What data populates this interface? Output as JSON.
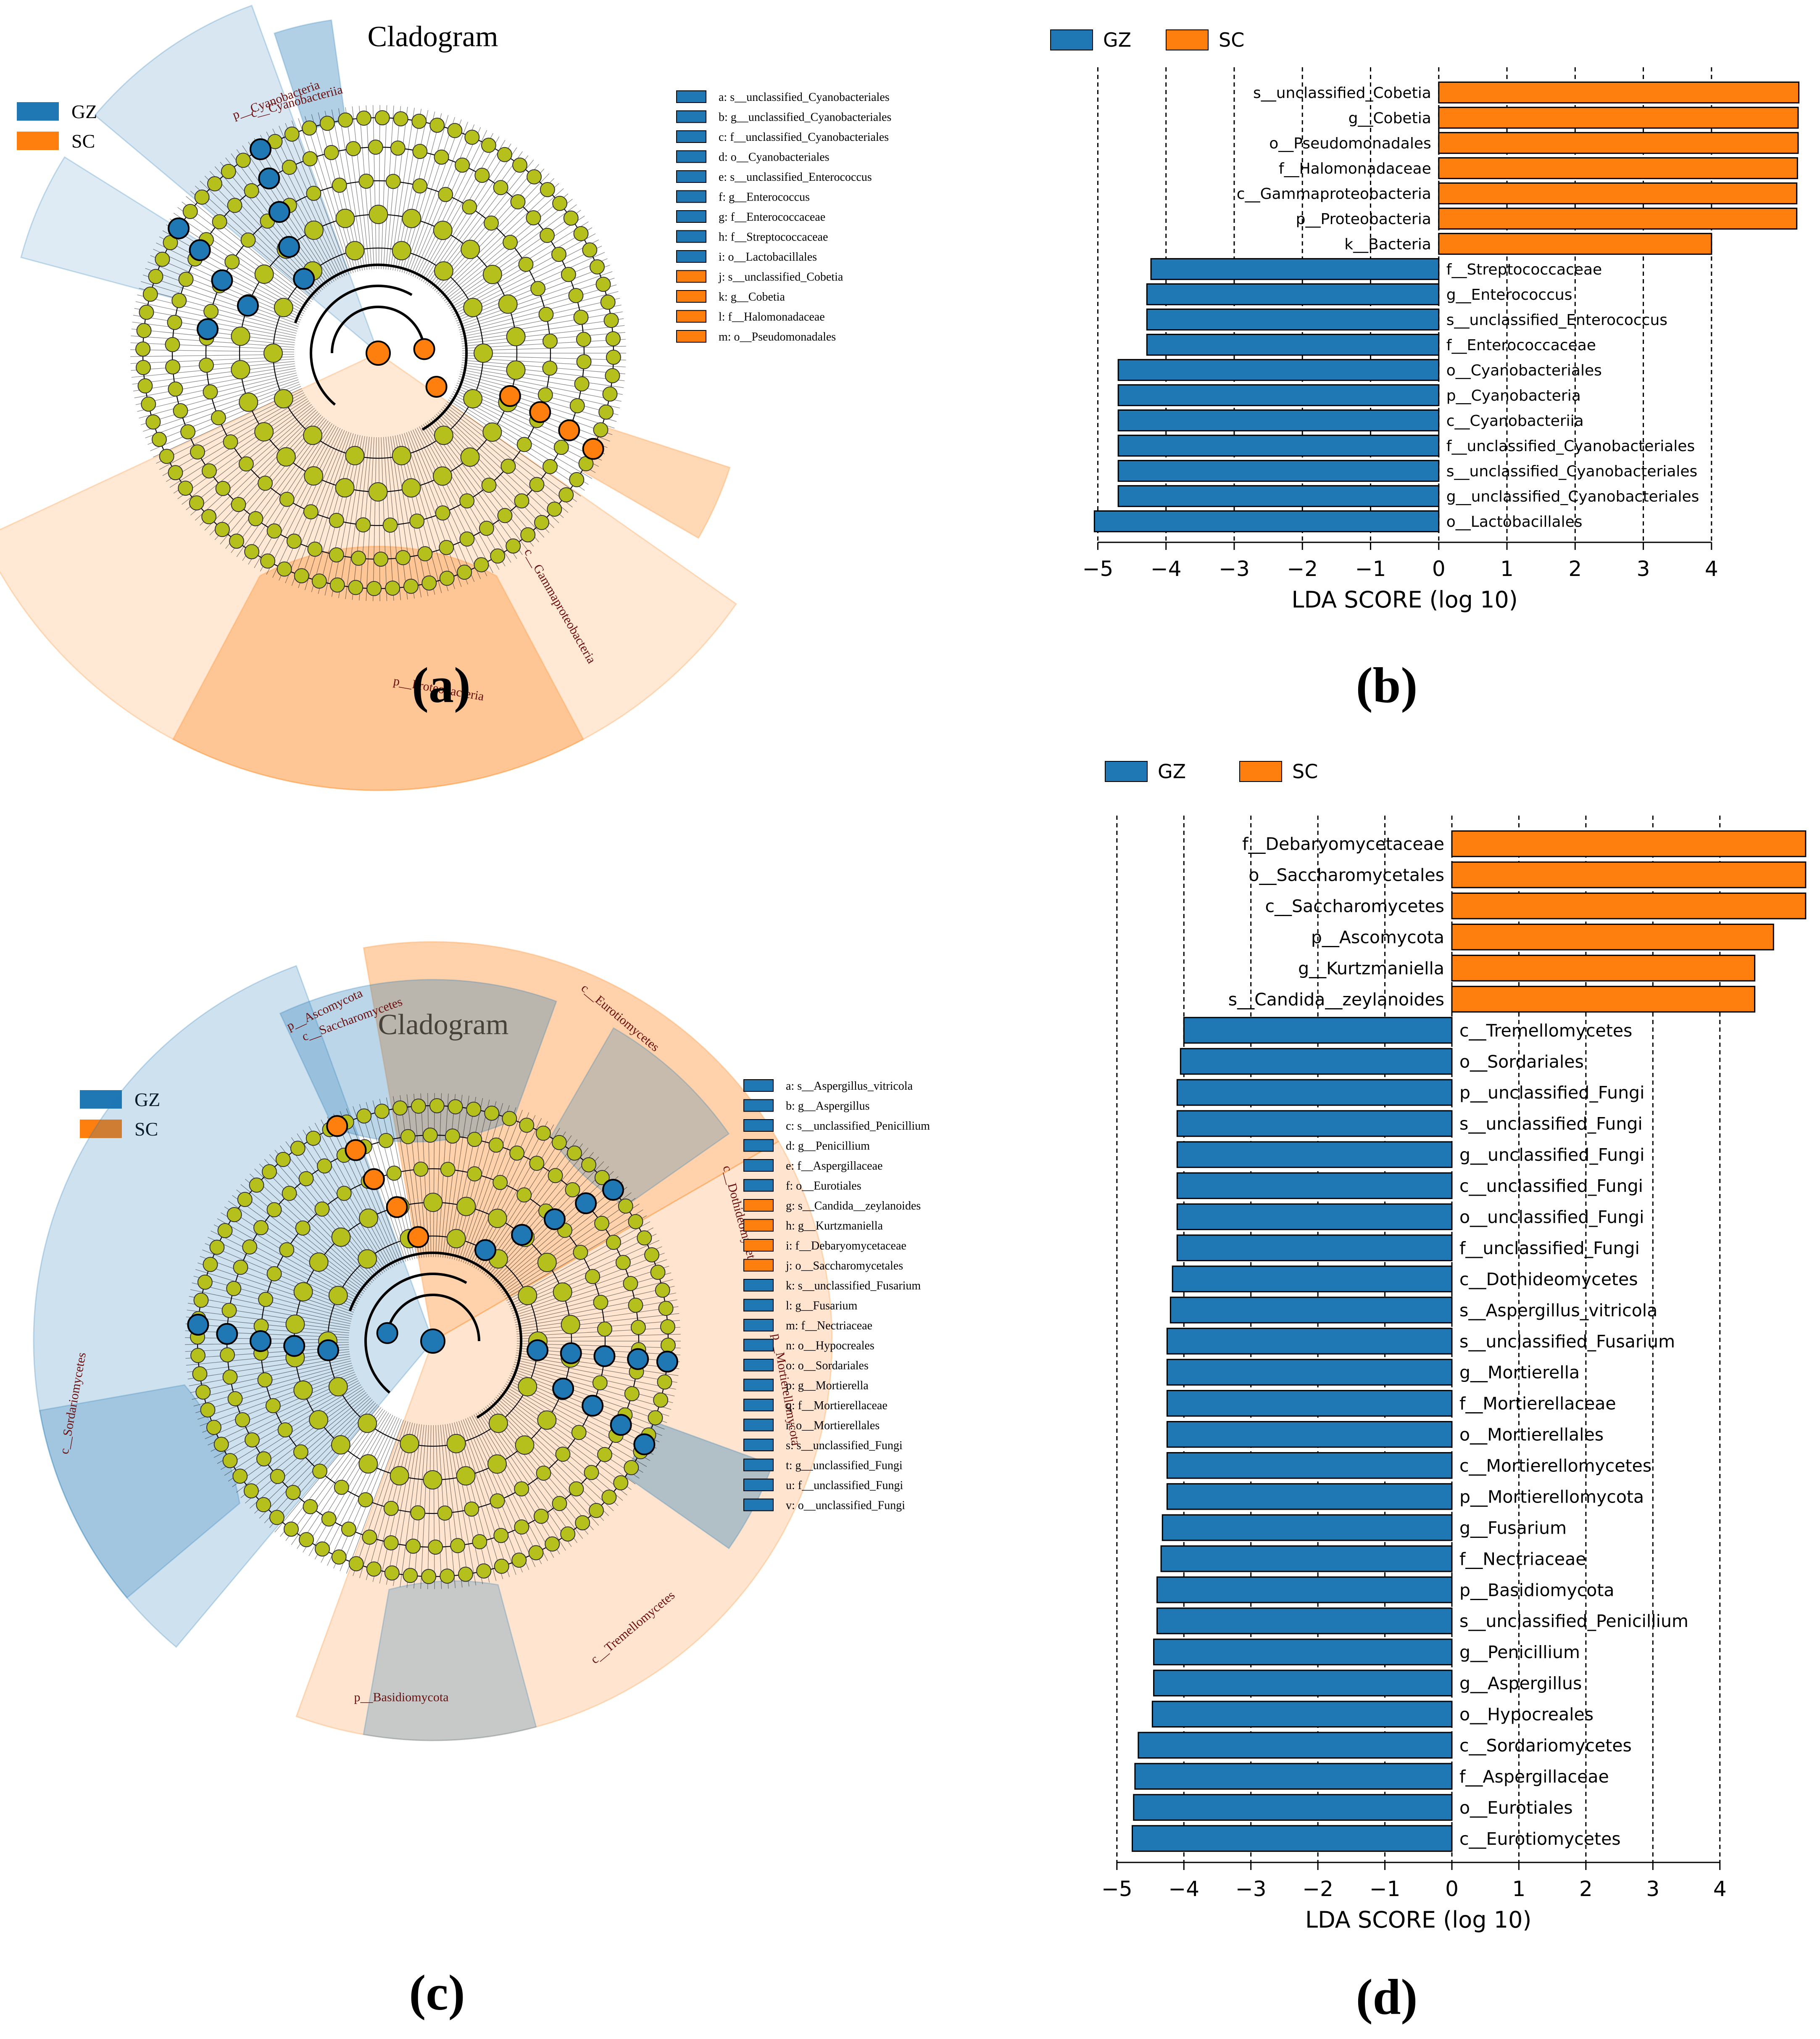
{
  "colors": {
    "GZ": "#1f77b4",
    "SC": "#ff7f0e",
    "node": "#b5c01c"
  },
  "panels": [
    {
      "id": "a",
      "letter": "(a)",
      "type": "cladogram",
      "title": "Cladogram",
      "legend_groups": [
        "GZ",
        "SC"
      ],
      "keys": [
        {
          "text": "a: s__unclassified_Cyanobacteriales",
          "group": "GZ"
        },
        {
          "text": "b: g__unclassified_Cyanobacteriales",
          "group": "GZ"
        },
        {
          "text": "c: f__unclassified_Cyanobacteriales",
          "group": "GZ"
        },
        {
          "text": "d: o__Cyanobacteriales",
          "group": "GZ"
        },
        {
          "text": "e: s__unclassified_Enterococcus",
          "group": "GZ"
        },
        {
          "text": "f: g__Enterococcus",
          "group": "GZ"
        },
        {
          "text": "g: f__Enterococcaceae",
          "group": "GZ"
        },
        {
          "text": "h: f__Streptococcaceae",
          "group": "GZ"
        },
        {
          "text": "i: o__Lactobacillales",
          "group": "GZ"
        },
        {
          "text": "j: s__unclassified_Cobetia",
          "group": "SC"
        },
        {
          "text": "k: g__Cobetia",
          "group": "SC"
        },
        {
          "text": "l: f__Halomonadaceae",
          "group": "SC"
        },
        {
          "text": "m: o__Pseudomonadales",
          "group": "SC"
        }
      ],
      "clade_labels": [
        {
          "text": "p__Cyanobacteria",
          "group": "GZ"
        },
        {
          "text": "c__Cyanobacteriia",
          "group": "GZ"
        },
        {
          "text": "c__Gammaproteobacteria",
          "group": "SC"
        },
        {
          "text": "p__Proteobacteria",
          "group": "SC"
        }
      ]
    },
    {
      "id": "c",
      "letter": "(c)",
      "type": "cladogram",
      "title": "Cladogram",
      "legend_groups": [
        "GZ",
        "SC"
      ],
      "keys": [
        {
          "text": "a: s__Aspergillus_vitricola",
          "group": "GZ"
        },
        {
          "text": "b: g__Aspergillus",
          "group": "GZ"
        },
        {
          "text": "c: s__unclassified_Penicillium",
          "group": "GZ"
        },
        {
          "text": "d: g__Penicillium",
          "group": "GZ"
        },
        {
          "text": "e: f__Aspergillaceae",
          "group": "GZ"
        },
        {
          "text": "f: o__Eurotiales",
          "group": "GZ"
        },
        {
          "text": "g: s__Candida__zeylanoides",
          "group": "SC"
        },
        {
          "text": "h: g__Kurtzmaniella",
          "group": "SC"
        },
        {
          "text": "i: f__Debaryomycetaceae",
          "group": "SC"
        },
        {
          "text": "j: o__Saccharomycetales",
          "group": "SC"
        },
        {
          "text": "k: s__unclassified_Fusarium",
          "group": "GZ"
        },
        {
          "text": "l: g__Fusarium",
          "group": "GZ"
        },
        {
          "text": "m: f__Nectriaceae",
          "group": "GZ"
        },
        {
          "text": "n: o__Hypocreales",
          "group": "GZ"
        },
        {
          "text": "o: o__Sordariales",
          "group": "GZ"
        },
        {
          "text": "p: g__Mortierella",
          "group": "GZ"
        },
        {
          "text": "q: f__Mortierellaceae",
          "group": "GZ"
        },
        {
          "text": "r: o__Mortierellales",
          "group": "GZ"
        },
        {
          "text": "s: s__unclassified_Fungi",
          "group": "GZ"
        },
        {
          "text": "t: g__unclassified_Fungi",
          "group": "GZ"
        },
        {
          "text": "u: f__unclassified_Fungi",
          "group": "GZ"
        },
        {
          "text": "v: o__unclassified_Fungi",
          "group": "GZ"
        }
      ],
      "clade_labels": [
        {
          "text": "p__Ascomycota",
          "group": "SC"
        },
        {
          "text": "c__Saccharomycetes",
          "group": "SC"
        },
        {
          "text": "c__Eurotiomycetes",
          "group": "GZ"
        },
        {
          "text": "c__Dothideomycetes",
          "group": "GZ"
        },
        {
          "text": "c__Sordariomycetes",
          "group": "GZ"
        },
        {
          "text": "c__Tremellomycetes",
          "group": "GZ"
        },
        {
          "text": "p__Basidiomycota",
          "group": "GZ"
        },
        {
          "text": "p__Mortierellomycota",
          "group": "GZ"
        }
      ]
    }
  ],
  "chart_data": [
    {
      "id": "b",
      "letter": "(b)",
      "type": "bar",
      "orientation": "horizontal",
      "xlabel": "LDA SCORE (log 10)",
      "xlim": [
        -5.2,
        5.4
      ],
      "xticks": [
        -5,
        -4,
        -3,
        -2,
        -1,
        0,
        1,
        2,
        3,
        4
      ],
      "xtick_labels": [
        "−5",
        "−4",
        "−3",
        "−2",
        "−1",
        "0",
        "1",
        "2",
        "3",
        "4"
      ],
      "grid": "vertical dashed",
      "legend_position": "top",
      "legend": [
        "GZ",
        "SC"
      ],
      "categories": [
        "s__unclassified_Cobetia",
        "g__Cobetia",
        "o__Pseudomonadales",
        "f__Halomonadaceae",
        "c__Gammaproteobacteria",
        "p__Proteobacteria",
        "k__Bacteria",
        "f__Streptococcaceae",
        "g__Enterococcus",
        "s__unclassified_Enterococcus",
        "f__Enterococcaceae",
        "o__Cyanobacteriales",
        "p__Cyanobacteria",
        "c__Cyanobacteriia",
        "f__unclassified_Cyanobacteriales",
        "s__unclassified_Cyanobacteriales",
        "g__unclassified_Cyanobacteriales",
        "o__Lactobacillales"
      ],
      "values": [
        5.28,
        5.27,
        5.27,
        5.26,
        5.25,
        5.25,
        4.0,
        -4.22,
        -4.28,
        -4.28,
        -4.28,
        -4.7,
        -4.7,
        -4.7,
        -4.7,
        -4.7,
        -4.7,
        -5.05
      ],
      "groups": [
        "SC",
        "SC",
        "SC",
        "SC",
        "SC",
        "SC",
        "SC",
        "GZ",
        "GZ",
        "GZ",
        "GZ",
        "GZ",
        "GZ",
        "GZ",
        "GZ",
        "GZ",
        "GZ",
        "GZ"
      ]
    },
    {
      "id": "d",
      "letter": "(d)",
      "type": "bar",
      "orientation": "horizontal",
      "xlabel": "LDA SCORE (log 10)",
      "xlim": [
        -5.3,
        5.3
      ],
      "xticks": [
        -5,
        -4,
        -3,
        -2,
        -1,
        0,
        1,
        2,
        3,
        4
      ],
      "xtick_labels": [
        "−5",
        "−4",
        "−3",
        "−2",
        "−1",
        "0",
        "1",
        "2",
        "3",
        "4"
      ],
      "grid": "vertical dashed",
      "legend_position": "top",
      "legend": [
        "GZ",
        "SC"
      ],
      "categories": [
        "f__Debaryomycetaceae",
        "o__Saccharomycetales",
        "c__Saccharomycetes",
        "p__Ascomycota",
        "g__Kurtzmaniella",
        "s__Candida__zeylanoides",
        "c__Tremellomycetes",
        "o__Sordariales",
        "p__unclassified_Fungi",
        "s__unclassified_Fungi",
        "g__unclassified_Fungi",
        "c__unclassified_Fungi",
        "o__unclassified_Fungi",
        "f__unclassified_Fungi",
        "c__Dothideomycetes",
        "s__Aspergillus_vitricola",
        "s__unclassified_Fusarium",
        "g__Mortierella",
        "f__Mortierellaceae",
        "o__Mortierellales",
        "c__Mortierellomycetes",
        "p__Mortierellomycota",
        "g__Fusarium",
        "f__Nectriaceae",
        "p__Basidiomycota",
        "s__unclassified_Penicillium",
        "g__Penicillium",
        "g__Aspergillus",
        "o__Hypocreales",
        "c__Sordariomycetes",
        "f__Aspergillaceae",
        "o__Eurotiales",
        "c__Eurotiomycetes"
      ],
      "values": [
        5.28,
        5.28,
        5.28,
        4.8,
        4.52,
        4.52,
        -4.0,
        -4.05,
        -4.1,
        -4.1,
        -4.1,
        -4.1,
        -4.1,
        -4.1,
        -4.17,
        -4.2,
        -4.25,
        -4.25,
        -4.25,
        -4.25,
        -4.25,
        -4.25,
        -4.32,
        -4.34,
        -4.4,
        -4.4,
        -4.45,
        -4.45,
        -4.47,
        -4.68,
        -4.73,
        -4.75,
        -4.77
      ],
      "groups": [
        "SC",
        "SC",
        "SC",
        "SC",
        "SC",
        "SC",
        "GZ",
        "GZ",
        "GZ",
        "GZ",
        "GZ",
        "GZ",
        "GZ",
        "GZ",
        "GZ",
        "GZ",
        "GZ",
        "GZ",
        "GZ",
        "GZ",
        "GZ",
        "GZ",
        "GZ",
        "GZ",
        "GZ",
        "GZ",
        "GZ",
        "GZ",
        "GZ",
        "GZ",
        "GZ",
        "GZ",
        "GZ"
      ]
    }
  ]
}
